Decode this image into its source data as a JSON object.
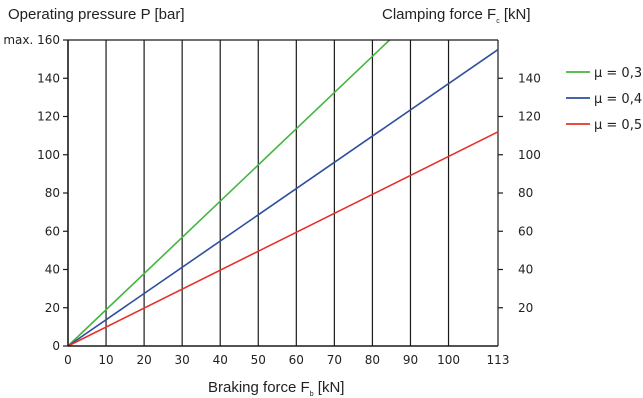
{
  "chart_data": {
    "type": "line",
    "left_axis_title": "Operating pressure P [bar]",
    "right_axis_title": {
      "main": "Clamping force F",
      "sub": "c",
      "unit": " [kN]"
    },
    "x_axis_title": {
      "main": "Braking force F",
      "sub": "b",
      "unit": " [kN]"
    },
    "xlim": [
      0,
      113
    ],
    "ylim": [
      0,
      160
    ],
    "x_ticks": [
      {
        "value": 0,
        "label": "0"
      },
      {
        "value": 10,
        "label": "10"
      },
      {
        "value": 20,
        "label": "20"
      },
      {
        "value": 30,
        "label": "30"
      },
      {
        "value": 40,
        "label": "40"
      },
      {
        "value": 50,
        "label": "50"
      },
      {
        "value": 60,
        "label": "60"
      },
      {
        "value": 70,
        "label": "70"
      },
      {
        "value": 80,
        "label": "80"
      },
      {
        "value": 90,
        "label": "90"
      },
      {
        "value": 100,
        "label": "100"
      },
      {
        "value": 113,
        "label": "113"
      }
    ],
    "y_left_ticks": [
      {
        "value": 0,
        "label": "0"
      },
      {
        "value": 20,
        "label": "20"
      },
      {
        "value": 40,
        "label": "40"
      },
      {
        "value": 60,
        "label": "60"
      },
      {
        "value": 80,
        "label": "80"
      },
      {
        "value": 100,
        "label": "100"
      },
      {
        "value": 120,
        "label": "120"
      },
      {
        "value": 140,
        "label": "140"
      },
      {
        "value": 160,
        "label": "max. 160"
      }
    ],
    "y_right_ticks": [
      {
        "value": 20,
        "label": "20"
      },
      {
        "value": 40,
        "label": "40"
      },
      {
        "value": 60,
        "label": "60"
      },
      {
        "value": 80,
        "label": "80"
      },
      {
        "value": 100,
        "label": "100"
      },
      {
        "value": 120,
        "label": "120"
      },
      {
        "value": 140,
        "label": "140"
      }
    ],
    "right_axis_max": 160,
    "grid": "vertical",
    "legend_position": "right",
    "series": [
      {
        "name": "μ = 0,3",
        "color": "#44b53f",
        "points": [
          [
            0,
            0
          ],
          [
            84.5,
            160
          ]
        ]
      },
      {
        "name": "μ = 0,4",
        "color": "#2f4f9e",
        "points": [
          [
            0,
            0
          ],
          [
            113,
            155
          ]
        ]
      },
      {
        "name": "μ = 0,5",
        "color": "#e8302b",
        "points": [
          [
            0,
            0
          ],
          [
            113,
            112
          ]
        ]
      }
    ]
  }
}
